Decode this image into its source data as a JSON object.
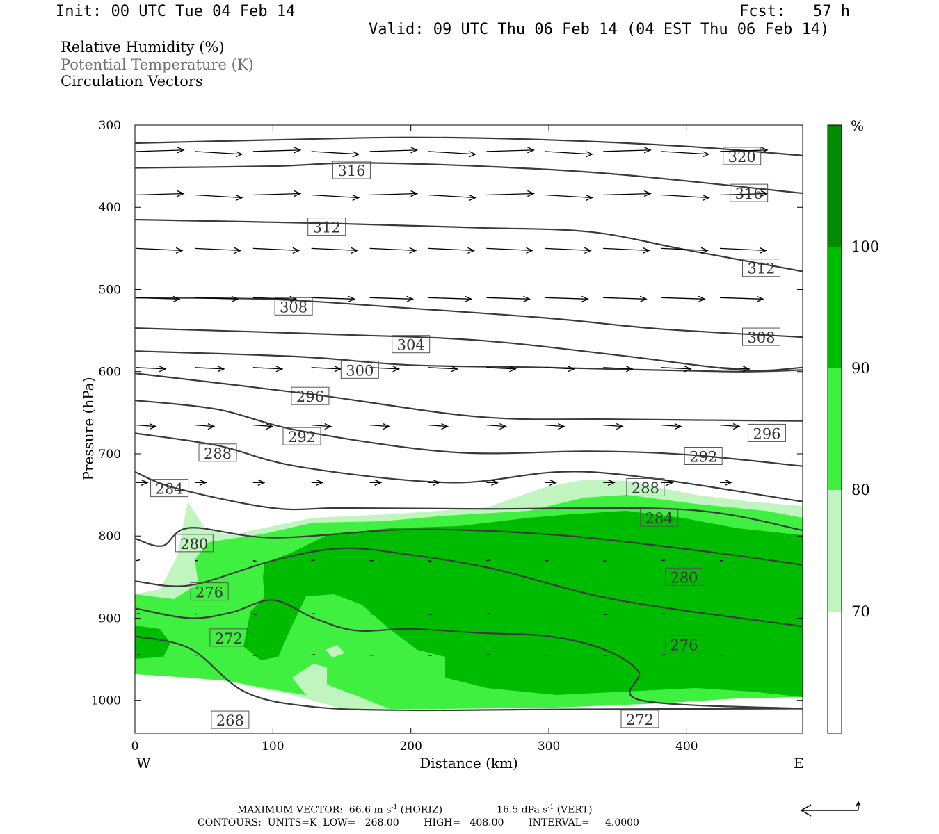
{
  "header": {
    "init": "Init: 00 UTC Tue 04 Feb 14",
    "fcst": "Fcst:   57 h",
    "valid": "Valid: 09 UTC Thu 06 Feb 14 (04 EST Thu 06 Feb 14)"
  },
  "fields": [
    {
      "label": "Relative Humidity (%)",
      "color": "#000000"
    },
    {
      "label": "Potential Temperature (K)",
      "color": "#707070"
    },
    {
      "label": "Circulation Vectors",
      "color": "#000000"
    }
  ],
  "footer": {
    "line1_a": "MAXIMUM VECTOR:  66.6 m s",
    "line1_b": " (HORIZ)",
    "line1_c": "16.5 dPa s",
    "line1_d": " (VERT)",
    "sup": "-1",
    "line2": "CONTOURS:  UNITS=K  LOW=   268.00        HIGH=   408.00        INTERVAL=     4.0000"
  },
  "chart_data": {
    "type": "cross-section",
    "xlabel": "Distance (km)",
    "ylabel": "Pressure (hPa)",
    "xlim": [
      0,
      484
    ],
    "ylim": [
      1040,
      300
    ],
    "x_ticks": [
      0,
      100,
      200,
      300,
      400
    ],
    "y_ticks": [
      300,
      400,
      500,
      600,
      700,
      800,
      900,
      1000
    ],
    "x_end_labels": {
      "left": "W",
      "right": "E"
    },
    "colorbar": {
      "unit": "%",
      "levels": [
        70,
        80,
        90,
        100
      ],
      "colors": [
        "#ffffff",
        "#c0f5c0",
        "#40f040",
        "#00bc00",
        "#008c00"
      ]
    },
    "theta_contours": [
      {
        "value": 320,
        "points": [
          [
            0,
            322
          ],
          [
            100,
            318
          ],
          [
            200,
            315
          ],
          [
            300,
            318
          ],
          [
            400,
            326
          ],
          [
            484,
            337
          ]
        ],
        "label_at": [
          440,
          338
        ]
      },
      {
        "value": 316,
        "points": [
          [
            0,
            352
          ],
          [
            100,
            350
          ],
          [
            160,
            346
          ],
          [
            250,
            350
          ],
          [
            350,
            360
          ],
          [
            484,
            383
          ]
        ],
        "label_at": [
          [
            157,
            355
          ],
          [
            445,
            383
          ]
        ]
      },
      {
        "value": 312,
        "points": [
          [
            0,
            415
          ],
          [
            150,
            420
          ],
          [
            250,
            425
          ],
          [
            330,
            430
          ],
          [
            400,
            452
          ],
          [
            484,
            478
          ]
        ],
        "label_at": [
          [
            139,
            424
          ],
          [
            454,
            474
          ]
        ]
      },
      {
        "value": 308,
        "points": [
          [
            0,
            510
          ],
          [
            100,
            512
          ],
          [
            200,
            523
          ],
          [
            300,
            535
          ],
          [
            380,
            548
          ],
          [
            484,
            558
          ]
        ],
        "label_at": [
          [
            115,
            521
          ],
          [
            454,
            558
          ]
        ]
      },
      {
        "value": 304,
        "points": [
          [
            0,
            547
          ],
          [
            150,
            555
          ],
          [
            250,
            562
          ],
          [
            350,
            580
          ],
          [
            440,
            598
          ],
          [
            484,
            595
          ]
        ],
        "label_at": [
          200,
          567
        ]
      },
      {
        "value": 300,
        "points": [
          [
            0,
            575
          ],
          [
            120,
            582
          ],
          [
            200,
            592
          ],
          [
            300,
            595
          ],
          [
            430,
            600
          ],
          [
            484,
            598
          ]
        ],
        "label_at": [
          163,
          598
        ]
      },
      {
        "value": 296,
        "points": [
          [
            0,
            602
          ],
          [
            130,
            628
          ],
          [
            250,
            655
          ],
          [
            350,
            658
          ],
          [
            484,
            660
          ]
        ],
        "label_at": [
          [
            127,
            630
          ],
          [
            458,
            675
          ]
        ]
      },
      {
        "value": 292,
        "points": [
          [
            0,
            635
          ],
          [
            60,
            646
          ],
          [
            120,
            672
          ],
          [
            230,
            698
          ],
          [
            330,
            697
          ],
          [
            400,
            701
          ],
          [
            484,
            715
          ]
        ],
        "label_at": [
          [
            121,
            679
          ],
          [
            412,
            703
          ]
        ]
      },
      {
        "value": 288,
        "points": [
          [
            0,
            675
          ],
          [
            60,
            690
          ],
          [
            120,
            716
          ],
          [
            230,
            735
          ],
          [
            330,
            722
          ],
          [
            484,
            758
          ]
        ],
        "label_at": [
          [
            60,
            699
          ],
          [
            370,
            741
          ]
        ]
      },
      {
        "value": 284,
        "points": [
          [
            0,
            722
          ],
          [
            30,
            742
          ],
          [
            100,
            766
          ],
          [
            150,
            766
          ],
          [
            250,
            767
          ],
          [
            400,
            768
          ],
          [
            484,
            793
          ]
        ],
        "label_at": [
          [
            25,
            742
          ],
          [
            380,
            778
          ]
        ]
      },
      {
        "value": 280,
        "points": [
          [
            0,
            803
          ],
          [
            20,
            812
          ],
          [
            40,
            790
          ],
          [
            100,
            802
          ],
          [
            200,
            792
          ],
          [
            300,
            798
          ],
          [
            400,
            816
          ],
          [
            484,
            835
          ]
        ],
        "label_at": [
          [
            43,
            809
          ],
          [
            398,
            850
          ]
        ]
      },
      {
        "value": 276,
        "points": [
          [
            0,
            855
          ],
          [
            40,
            860
          ],
          [
            100,
            830
          ],
          [
            150,
            815
          ],
          [
            200,
            823
          ],
          [
            260,
            840
          ],
          [
            350,
            878
          ],
          [
            484,
            910
          ]
        ],
        "label_at": [
          [
            54,
            868
          ],
          [
            398,
            932
          ]
        ]
      },
      {
        "value": 272,
        "points": [
          [
            0,
            888
          ],
          [
            40,
            900
          ],
          [
            70,
            893
          ],
          [
            100,
            878
          ],
          [
            130,
            900
          ],
          [
            160,
            915
          ],
          [
            200,
            913
          ],
          [
            250,
            918
          ],
          [
            300,
            922
          ],
          [
            340,
            938
          ],
          [
            365,
            965
          ],
          [
            367,
            1000
          ],
          [
            484,
            1010
          ]
        ],
        "label_at": [
          [
            68,
            924
          ],
          [
            366,
            1023
          ]
        ]
      },
      {
        "value": 268,
        "points": [
          [
            0,
            922
          ],
          [
            40,
            937
          ],
          [
            80,
            990
          ],
          [
            130,
            1008
          ],
          [
            200,
            1012
          ],
          [
            300,
            1011
          ],
          [
            484,
            1010
          ]
        ],
        "label_at": [
          69,
          1024
        ]
      }
    ],
    "max_vector": {
      "horiz": 66.6,
      "vert": 16.5
    }
  }
}
